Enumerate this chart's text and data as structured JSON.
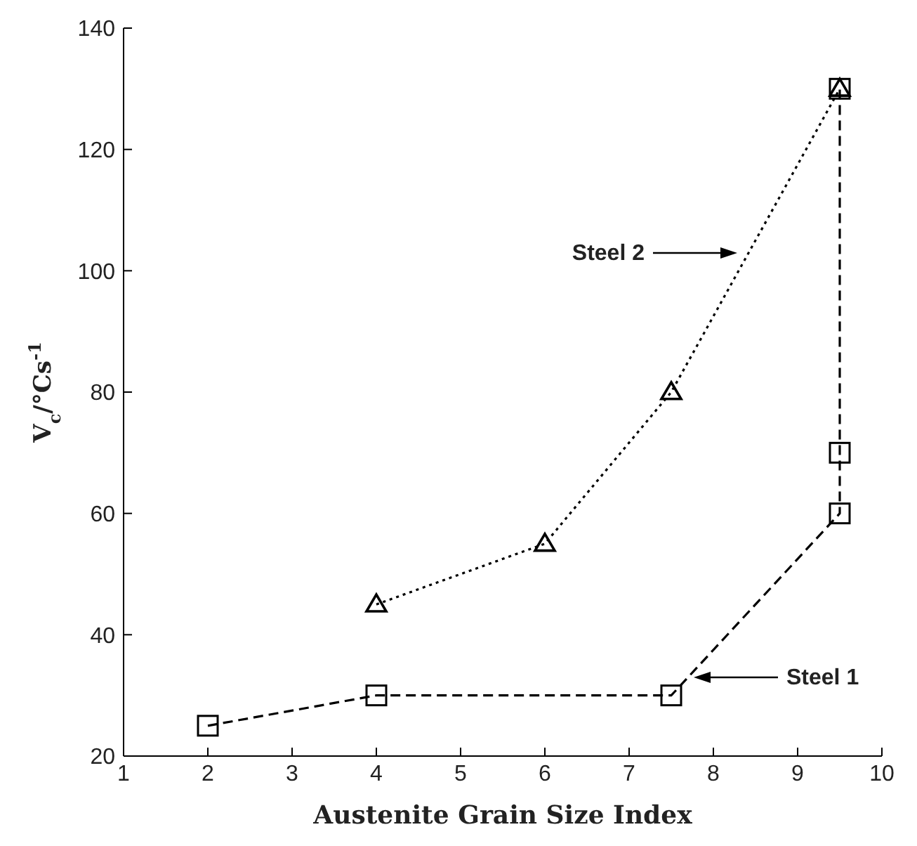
{
  "chart_data": {
    "type": "line",
    "xlabel": "Austenite Grain Size Index",
    "ylabel": "V$_{c}$/°Cs$^{-1}$",
    "xlim": [
      1,
      10
    ],
    "xticks": [
      1,
      2,
      3,
      4,
      5,
      6,
      7,
      8,
      9,
      10
    ],
    "ylim": [
      20,
      140
    ],
    "yticks": [
      20,
      40,
      60,
      80,
      100,
      120,
      140
    ],
    "grid": false,
    "legend": false,
    "annotations": [
      "Steel 2",
      "Steel 1"
    ],
    "series": [
      {
        "color": "#000000",
        "marker": "square",
        "line_style": "dashed",
        "x": [
          2,
          4,
          7.5,
          9.5,
          9.5,
          9.5
        ],
        "values": [
          25,
          30,
          30,
          60,
          70,
          130
        ]
      },
      {
        "color": "#000000",
        "marker": "triangle",
        "line_style": "dotted",
        "x": [
          4,
          6,
          7.5,
          9.5
        ],
        "values": [
          45,
          55,
          80,
          130
        ]
      }
    ]
  }
}
